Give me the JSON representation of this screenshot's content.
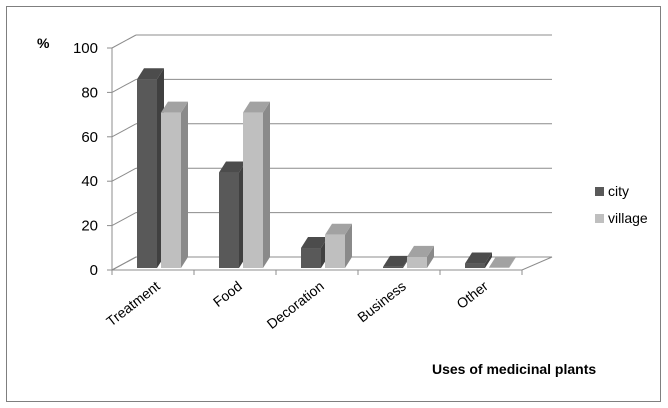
{
  "chart_data": {
    "type": "bar",
    "style": "3d-clustered-column",
    "title": "",
    "xlabel": "Uses of medicinal plants",
    "ylabel": "%",
    "ylim": [
      0,
      100
    ],
    "yticks": [
      "0",
      "20",
      "40",
      "60",
      "80",
      "100"
    ],
    "categories": [
      "Treatment",
      "Food",
      "Decoration",
      "Business",
      "Other"
    ],
    "series": [
      {
        "name": "city",
        "values": [
          85,
          43,
          9,
          0.5,
          2
        ],
        "color": "#595959"
      },
      {
        "name": "village",
        "values": [
          70,
          70,
          15,
          5,
          0.3
        ],
        "color": "#bfbfbf"
      }
    ],
    "grid": true,
    "legend": "right"
  }
}
